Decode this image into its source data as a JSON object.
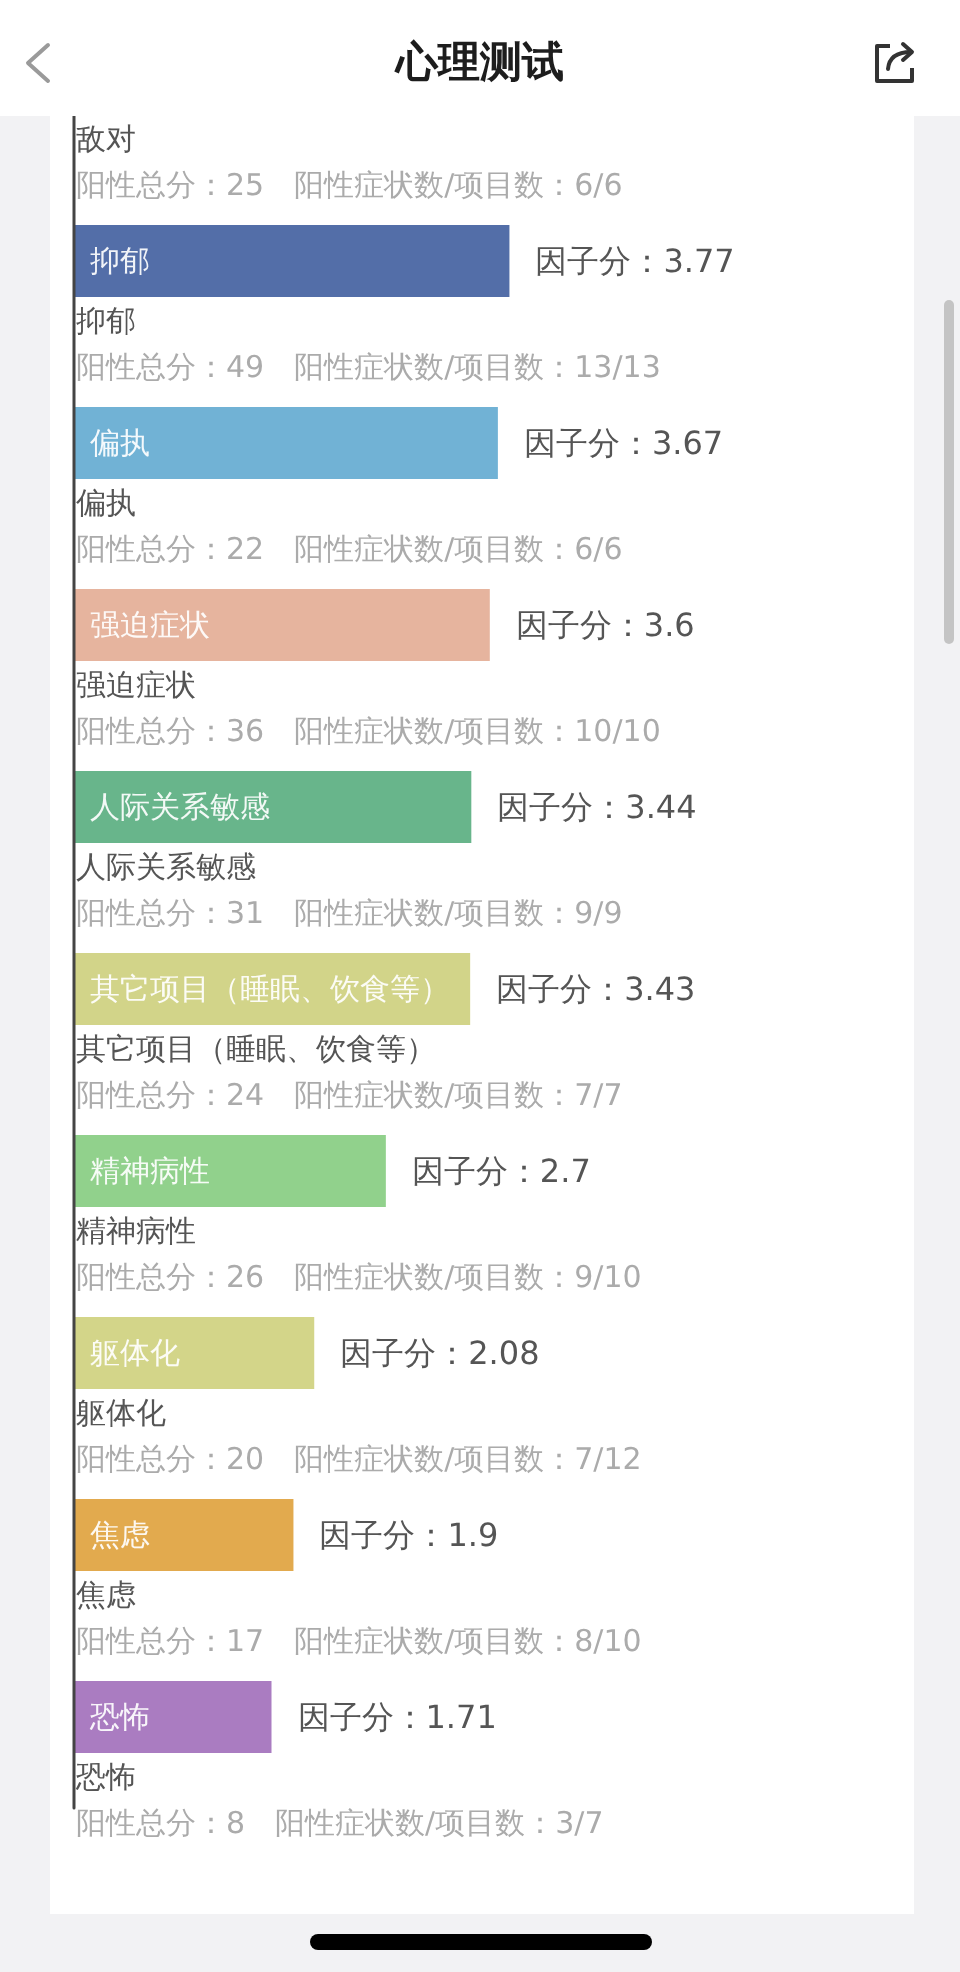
{
  "chart_data": {
    "type": "bar",
    "orientation": "horizontal",
    "title": "心理测试",
    "categories": [
      "敌对",
      "抑郁",
      "偏执",
      "强迫症状",
      "人际关系敏感",
      "其它项目（睡眠、饮食等）",
      "精神病性",
      "躯体化",
      "焦虑",
      "恐怖"
    ],
    "values": [
      null,
      3.77,
      3.67,
      3.6,
      3.44,
      3.43,
      2.7,
      2.08,
      1.9,
      1.71
    ],
    "colors": [
      null,
      "#536ea8",
      "#71b2d5",
      "#e6b49e",
      "#68b58b",
      "#d2d489",
      "#91d18c",
      "#d3d589",
      "#e2aa4e",
      "#aa7cc1"
    ],
    "value_labels": [
      null,
      "因子分：3.77",
      "因子分：3.67",
      "因子分：3.6",
      "因子分：3.44",
      "因子分：3.43",
      "因子分：2.7",
      "因子分：2.08",
      "因子分：1.9",
      "因子分：1.71"
    ],
    "tick_labels": "y",
    "annotations": [
      "阳性总分：25　阳性症状数/项目数：6/6",
      "阳性总分：49　阳性症状数/项目数：13/13",
      "阳性总分：22　阳性症状数/项目数：6/6",
      "阳性总分：36　阳性症状数/项目数：10/10",
      "阳性总分：31　阳性症状数/项目数：9/9",
      "阳性总分：24　阳性症状数/项目数：7/7",
      "阳性总分：26　阳性症状数/项目数：9/10",
      "阳性总分：20　阳性症状数/项目数：7/12",
      "阳性总分：17　阳性症状数/项目数：8/10",
      "阳性总分：8　阳性症状数/项目数：3/7"
    ]
  }
}
